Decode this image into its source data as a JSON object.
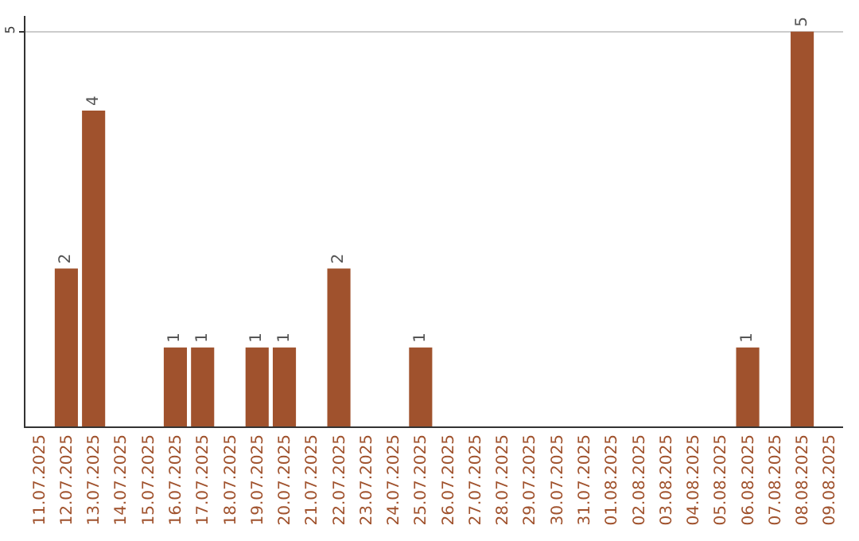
{
  "chart_data": {
    "type": "bar",
    "categories": [
      "11.07.2025",
      "12.07.2025",
      "13.07.2025",
      "14.07.2025",
      "15.07.2025",
      "16.07.2025",
      "17.07.2025",
      "18.07.2025",
      "19.07.2025",
      "20.07.2025",
      "21.07.2025",
      "22.07.2025",
      "23.07.2025",
      "24.07.2025",
      "25.07.2025",
      "26.07.2025",
      "27.07.2025",
      "28.07.2025",
      "29.07.2025",
      "30.07.2025",
      "31.07.2025",
      "01.08.2025",
      "02.08.2025",
      "03.08.2025",
      "04.08.2025",
      "05.08.2025",
      "06.08.2025",
      "07.08.2025",
      "08.08.2025",
      "09.08.2025"
    ],
    "values": [
      0,
      2,
      4,
      0,
      0,
      1,
      1,
      0,
      1,
      1,
      0,
      2,
      0,
      0,
      1,
      0,
      0,
      0,
      0,
      0,
      0,
      0,
      0,
      0,
      0,
      0,
      1,
      0,
      5,
      0
    ],
    "value_labels": [
      null,
      "2",
      "4",
      null,
      null,
      "1",
      "1",
      null,
      "1",
      "1",
      null,
      "2",
      null,
      null,
      "1",
      null,
      null,
      null,
      null,
      null,
      null,
      null,
      null,
      null,
      null,
      null,
      "1",
      null,
      "5",
      null
    ],
    "color": "#a0522d",
    "ylim": [
      0,
      5.2
    ],
    "yticks": [
      5
    ],
    "grid": "y",
    "legend": false
  }
}
